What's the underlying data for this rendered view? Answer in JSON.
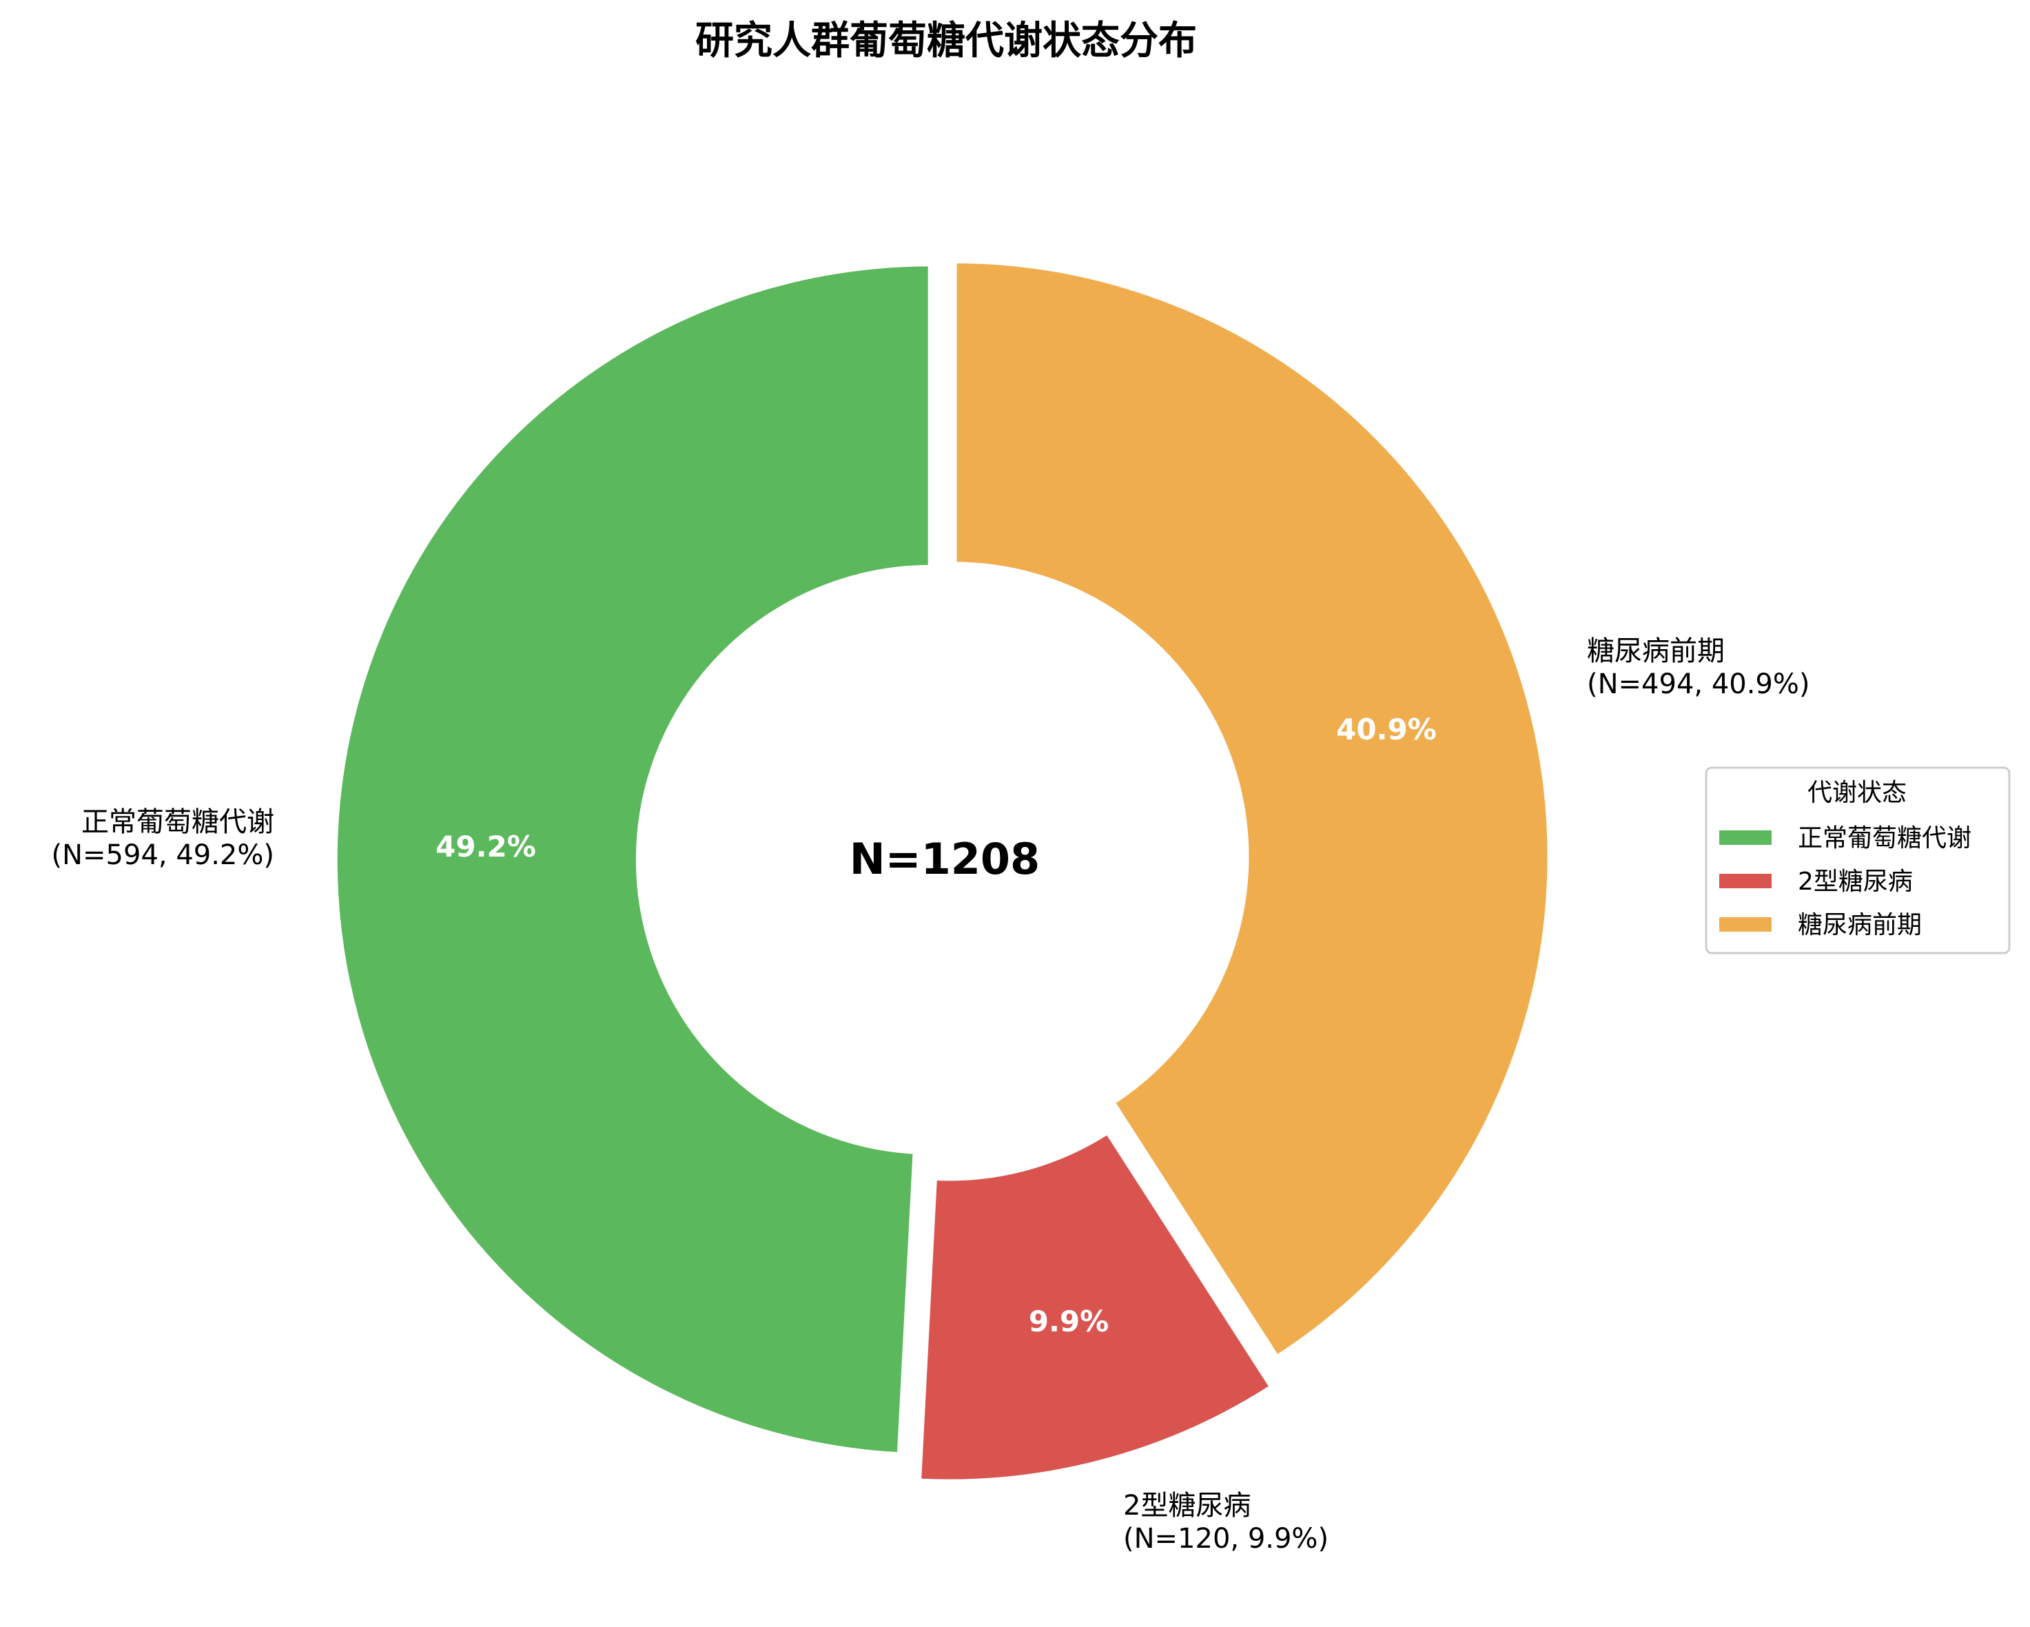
{
  "chart_data": {
    "type": "pie",
    "subtype": "donut",
    "title": "研究人群葡萄糖代谢状态分布",
    "center_label": "N=1208",
    "total": 1208,
    "categories": [
      "正常葡萄糖代谢",
      "2型糖尿病",
      "糖尿病前期"
    ],
    "values": [
      594,
      120,
      494
    ],
    "percentages": [
      49.2,
      9.9,
      40.9
    ],
    "colors": [
      "#5cb85c",
      "#d9534f",
      "#f0ad4e"
    ],
    "explode": [
      0.02,
      0.045,
      0.02
    ],
    "start_angle": 90,
    "inner_radius_ratio": 0.49,
    "slices": [
      {
        "label": "正常葡萄糖代谢",
        "value": 594,
        "pct_label": "49.2%",
        "outer_line1": "正常葡萄糖代谢",
        "outer_line2": "(N=594, 49.2%)",
        "color": "#5cb85c"
      },
      {
        "label": "2型糖尿病",
        "value": 120,
        "pct_label": "9.9%",
        "outer_line1": "2型糖尿病",
        "outer_line2": "(N=120, 9.9%)",
        "color": "#d9534f"
      },
      {
        "label": "糖尿病前期",
        "value": 494,
        "pct_label": "40.9%",
        "outer_line1": "糖尿病前期",
        "outer_line2": "(N=494, 40.9%)",
        "color": "#f0ad4e"
      }
    ],
    "legend": {
      "title": "代谢状态",
      "position": "right",
      "entries": [
        "正常葡萄糖代谢",
        "2型糖尿病",
        "糖尿病前期"
      ]
    }
  }
}
